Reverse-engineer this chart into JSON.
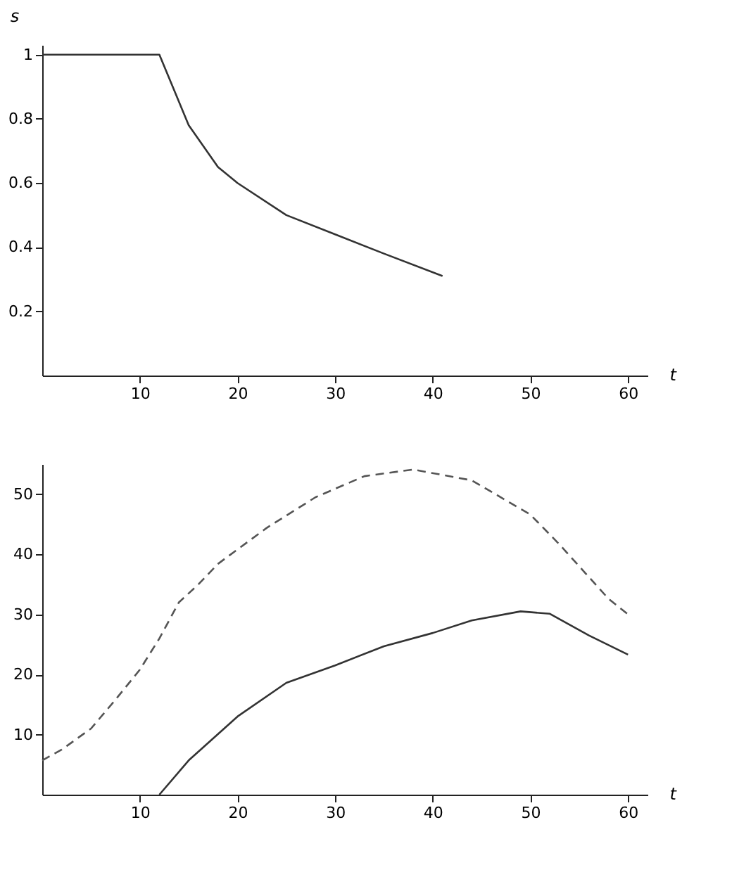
{
  "chart_data": [
    {
      "type": "line",
      "xlabel": "t",
      "ylabel": "s",
      "xlim": [
        0,
        62
      ],
      "ylim": [
        0,
        1.03
      ],
      "xticks": [
        10,
        20,
        30,
        40,
        50,
        60
      ],
      "yticks": [
        0.2,
        0.4,
        0.6,
        0.8,
        {
          "value": 1,
          "label": "1"
        }
      ],
      "grid": false,
      "series": [
        {
          "color": "#333333",
          "line_style": "solid",
          "x": [
            0,
            12,
            15,
            18,
            20,
            25,
            30,
            35,
            41
          ],
          "values": [
            1,
            1,
            0.78,
            0.65,
            0.6,
            0.5,
            0.44,
            0.38,
            0.31
          ]
        }
      ]
    },
    {
      "type": "line",
      "xlabel": "t",
      "xlim": [
        0,
        62
      ],
      "ylim": [
        0,
        55
      ],
      "xticks": [
        10,
        20,
        30,
        40,
        50,
        60
      ],
      "yticks": [
        10,
        20,
        30,
        40,
        50
      ],
      "grid": false,
      "series": [
        {
          "color": "#555555",
          "line_style": "dashed",
          "x": [
            0,
            2,
            5,
            7.5,
            10,
            12,
            14,
            16,
            18,
            23,
            28,
            33,
            38,
            44,
            50,
            53,
            58,
            60
          ],
          "values": [
            5.7,
            7.5,
            11,
            15.8,
            20.8,
            26,
            32,
            35,
            38.4,
            44.4,
            49.5,
            53,
            54.1,
            52.3,
            46.6,
            41.6,
            32.6,
            30
          ]
        },
        {
          "color": "#333333",
          "line_style": "solid",
          "x": [
            12,
            15,
            20,
            25,
            30,
            35,
            40,
            44,
            49,
            52,
            56,
            60
          ],
          "values": [
            0,
            5.7,
            13,
            18.6,
            21.5,
            24.7,
            26.9,
            29,
            30.5,
            30.1,
            26.5,
            23.3
          ]
        }
      ]
    }
  ]
}
